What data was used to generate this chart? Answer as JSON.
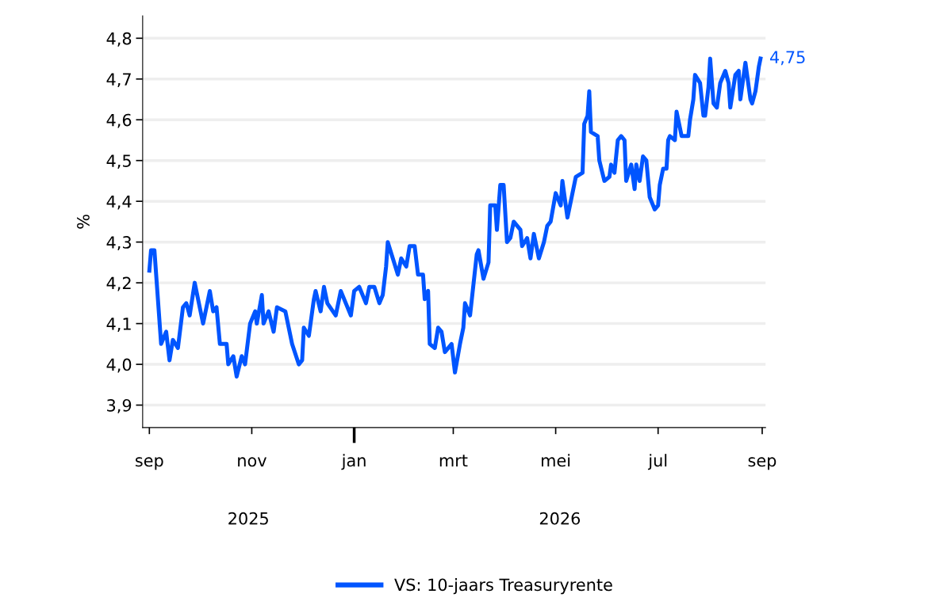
{
  "chart_data": {
    "type": "line",
    "ylabel": "%",
    "xlim": [
      "2025-08-28",
      "2026-09-03"
    ],
    "xticks": [
      {
        "value": "2025-09-01",
        "label": "sep"
      },
      {
        "value": "2025-11-01",
        "label": "nov"
      },
      {
        "value": "2026-01-01",
        "label": "jan"
      },
      {
        "value": "2026-03-01",
        "label": "mrt"
      },
      {
        "value": "2026-05-01",
        "label": "mei"
      },
      {
        "value": "2026-07-01",
        "label": "jul"
      },
      {
        "value": "2026-09-01",
        "label": "sep"
      }
    ],
    "ylim": [
      3.845,
      4.855
    ],
    "yticks": [
      {
        "value": 3.9,
        "label": "3,9"
      },
      {
        "value": 4.0,
        "label": "4,0"
      },
      {
        "value": 4.1,
        "label": "4,1"
      },
      {
        "value": 4.2,
        "label": "4,2"
      },
      {
        "value": 4.3,
        "label": "4,3"
      },
      {
        "value": 4.4,
        "label": "4,4"
      },
      {
        "value": 4.5,
        "label": "4,5"
      },
      {
        "value": 4.6,
        "label": "4,6"
      },
      {
        "value": 4.7,
        "label": "4,7"
      },
      {
        "value": 4.8,
        "label": "4,8"
      }
    ],
    "grid": "y",
    "legend": "bottom",
    "marker": "none",
    "line_style": "solid",
    "annotations": [
      "2025",
      "2026"
    ],
    "x": [
      "2025-09-01",
      "2025-09-02",
      "2025-09-04",
      "2025-09-08",
      "2025-09-11",
      "2025-09-13",
      "2025-09-15",
      "2025-09-18",
      "2025-09-21",
      "2025-09-23",
      "2025-09-25",
      "2025-09-28",
      "2025-09-30",
      "2025-10-03",
      "2025-10-07",
      "2025-10-09",
      "2025-10-11",
      "2025-10-13",
      "2025-10-17",
      "2025-10-18",
      "2025-10-21",
      "2025-10-23",
      "2025-10-26",
      "2025-10-28",
      "2025-10-31",
      "2025-11-03",
      "2025-11-04",
      "2025-11-07",
      "2025-11-08",
      "2025-11-11",
      "2025-11-14",
      "2025-11-16",
      "2025-11-21",
      "2025-11-25",
      "2025-11-29",
      "2025-12-01",
      "2025-12-02",
      "2025-12-05",
      "2025-12-08",
      "2025-12-09",
      "2025-12-12",
      "2025-12-14",
      "2025-12-16",
      "2025-12-21",
      "2025-12-24",
      "2025-12-27",
      "2025-12-30",
      "2026-01-01",
      "2026-01-04",
      "2026-01-08",
      "2026-01-10",
      "2026-01-13",
      "2026-01-16",
      "2026-01-18",
      "2026-01-20",
      "2026-01-21",
      "2026-01-24",
      "2026-01-27",
      "2026-01-29",
      "2026-02-01",
      "2026-02-03",
      "2026-02-06",
      "2026-02-08",
      "2026-02-11",
      "2026-02-12",
      "2026-02-14",
      "2026-02-15",
      "2026-02-18",
      "2026-02-20",
      "2026-02-22",
      "2026-02-24",
      "2026-02-28",
      "2026-03-02",
      "2026-03-05",
      "2026-03-07",
      "2026-03-08",
      "2026-03-11",
      "2026-03-15",
      "2026-03-16",
      "2026-03-19",
      "2026-03-22",
      "2026-03-23",
      "2026-03-26",
      "2026-03-27",
      "2026-03-29",
      "2026-03-31",
      "2026-04-02",
      "2026-04-04",
      "2026-04-06",
      "2026-04-10",
      "2026-04-11",
      "2026-04-14",
      "2026-04-16",
      "2026-04-18",
      "2026-04-21",
      "2026-04-24",
      "2026-04-26",
      "2026-04-28",
      "2026-05-01",
      "2026-05-04",
      "2026-05-05",
      "2026-05-08",
      "2026-05-10",
      "2026-05-13",
      "2026-05-17",
      "2026-05-18",
      "2026-05-20",
      "2026-05-21",
      "2026-05-22",
      "2026-05-26",
      "2026-05-27",
      "2026-05-30",
      "2026-06-02",
      "2026-06-03",
      "2026-06-05",
      "2026-06-07",
      "2026-06-09",
      "2026-06-11",
      "2026-06-12",
      "2026-06-15",
      "2026-06-17",
      "2026-06-18",
      "2026-06-20",
      "2026-06-22",
      "2026-06-24",
      "2026-06-26",
      "2026-06-29",
      "2026-07-01",
      "2026-07-02",
      "2026-07-04",
      "2026-07-06",
      "2026-07-07",
      "2026-07-08",
      "2026-07-11",
      "2026-07-12",
      "2026-07-15",
      "2026-07-19",
      "2026-07-20",
      "2026-07-22",
      "2026-07-23",
      "2026-07-26",
      "2026-07-28",
      "2026-07-29",
      "2026-07-31",
      "2026-08-01",
      "2026-08-03",
      "2026-08-05",
      "2026-08-07",
      "2026-08-10",
      "2026-08-12",
      "2026-08-13",
      "2026-08-16",
      "2026-08-18",
      "2026-08-19",
      "2026-08-22",
      "2026-08-25",
      "2026-08-26",
      "2026-08-28",
      "2026-08-30",
      "2026-08-31"
    ],
    "series": [
      {
        "name": "VS: 10-jaars Treasuryrente",
        "color": "#0055ff",
        "values": [
          4.23,
          4.28,
          4.28,
          4.05,
          4.08,
          4.01,
          4.06,
          4.04,
          4.14,
          4.15,
          4.12,
          4.2,
          4.16,
          4.1,
          4.18,
          4.13,
          4.14,
          4.05,
          4.05,
          4.0,
          4.02,
          3.97,
          4.02,
          4.0,
          4.1,
          4.13,
          4.1,
          4.17,
          4.1,
          4.13,
          4.08,
          4.14,
          4.13,
          4.05,
          4.0,
          4.01,
          4.09,
          4.07,
          4.16,
          4.18,
          4.13,
          4.19,
          4.15,
          4.12,
          4.18,
          4.15,
          4.12,
          4.18,
          4.19,
          4.15,
          4.19,
          4.19,
          4.15,
          4.17,
          4.24,
          4.3,
          4.26,
          4.22,
          4.26,
          4.24,
          4.29,
          4.29,
          4.22,
          4.22,
          4.16,
          4.18,
          4.05,
          4.04,
          4.09,
          4.08,
          4.03,
          4.05,
          3.98,
          4.05,
          4.09,
          4.15,
          4.12,
          4.27,
          4.28,
          4.21,
          4.25,
          4.39,
          4.39,
          4.33,
          4.44,
          4.44,
          4.3,
          4.31,
          4.35,
          4.33,
          4.29,
          4.31,
          4.26,
          4.32,
          4.26,
          4.3,
          4.34,
          4.35,
          4.42,
          4.39,
          4.45,
          4.36,
          4.4,
          4.46,
          4.47,
          4.59,
          4.61,
          4.67,
          4.57,
          4.56,
          4.5,
          4.45,
          4.46,
          4.49,
          4.47,
          4.55,
          4.56,
          4.55,
          4.45,
          4.49,
          4.43,
          4.49,
          4.45,
          4.51,
          4.5,
          4.41,
          4.38,
          4.39,
          4.44,
          4.48,
          4.48,
          4.55,
          4.56,
          4.55,
          4.62,
          4.56,
          4.56,
          4.6,
          4.65,
          4.71,
          4.69,
          4.61,
          4.61,
          4.68,
          4.75,
          4.64,
          4.63,
          4.69,
          4.72,
          4.69,
          4.63,
          4.71,
          4.72,
          4.65,
          4.74,
          4.65,
          4.64,
          4.67,
          4.73,
          4.75
        ],
        "value_labels": [
          null,
          null,
          null,
          null,
          null,
          null,
          null,
          null,
          null,
          null,
          null,
          null,
          null,
          null,
          null,
          null,
          null,
          null,
          null,
          null,
          null,
          null,
          null,
          null,
          null,
          null,
          null,
          null,
          null,
          null,
          null,
          null,
          null,
          null,
          null,
          null,
          null,
          null,
          null,
          null,
          null,
          null,
          null,
          null,
          null,
          null,
          null,
          null,
          null,
          null,
          null,
          null,
          null,
          null,
          null,
          null,
          null,
          null,
          null,
          null,
          null,
          null,
          null,
          null,
          null,
          null,
          null,
          null,
          null,
          null,
          null,
          null,
          null,
          null,
          null,
          null,
          null,
          null,
          null,
          null,
          null,
          null,
          null,
          null,
          null,
          null,
          null,
          null,
          null,
          null,
          null,
          null,
          null,
          null,
          null,
          null,
          null,
          null,
          null,
          null,
          null,
          null,
          null,
          null,
          null,
          null,
          null,
          null,
          null,
          null,
          null,
          null,
          null,
          null,
          null,
          null,
          null,
          null,
          null,
          null,
          null,
          null,
          null,
          null,
          null,
          null,
          null,
          null,
          null,
          null,
          null,
          null,
          null,
          null,
          null,
          null,
          null,
          null,
          null,
          null,
          null,
          null,
          null,
          null,
          null,
          null,
          null,
          null,
          null,
          null,
          null,
          null,
          null,
          null,
          null,
          null,
          null,
          null,
          null,
          "4,75"
        ]
      }
    ]
  }
}
